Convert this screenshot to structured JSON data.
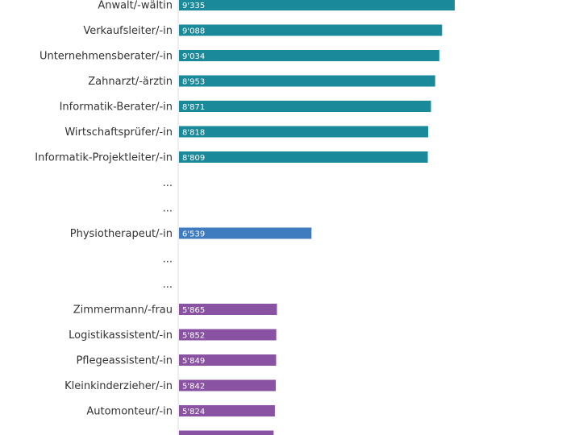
{
  "chart_data": {
    "type": "bar",
    "orientation": "horizontal",
    "grid": false,
    "categories": [
      "Anwalt/-wältin",
      "Verkaufsleiter/-in",
      "Unternehmensberater/-in",
      "Zahnarzt/-ärztin",
      "Informatik-Berater/-in",
      "Wirtschaftsprüfer/-in",
      "Informatik-Projektleiter/-in",
      "...",
      "...",
      "Physiotherapeut/-in",
      "...",
      "...",
      "Zimmermann/-frau",
      "Logistikassistent/-in",
      "Pflegeassistent/-in",
      "Kleinkinderzieher/-in",
      "Automonteur/-in",
      ""
    ],
    "values": [
      9335,
      9088,
      9034,
      8953,
      8871,
      8818,
      8809,
      null,
      null,
      6539,
      null,
      null,
      5865,
      5852,
      5849,
      5842,
      5824,
      5800
    ],
    "value_labels": [
      "9'335",
      "9'088",
      "9'034",
      "8'953",
      "8'871",
      "8'818",
      "8'809",
      "",
      "",
      "6'539",
      "",
      "",
      "5'865",
      "5'852",
      "5'849",
      "5'842",
      "5'824",
      ""
    ],
    "groups": [
      "top",
      "top",
      "top",
      "top",
      "top",
      "top",
      "top",
      "gap",
      "gap",
      "highlight",
      "gap",
      "gap",
      "bottom",
      "bottom",
      "bottom",
      "bottom",
      "bottom",
      "bottom"
    ],
    "colors": {
      "top": "#1a8a9b",
      "highlight": "#3f7bbf",
      "bottom": "#8a52a3",
      "axis": "#dddddd"
    }
  }
}
